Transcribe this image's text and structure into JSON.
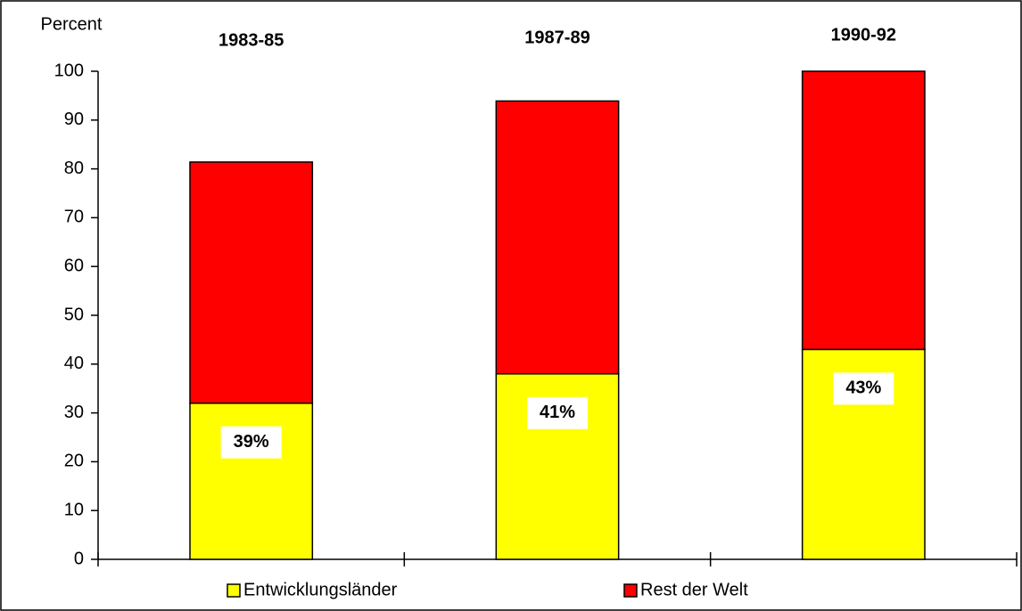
{
  "chart_data": {
    "type": "bar",
    "stacked": true,
    "y_label": "Percent",
    "categories": [
      "1983-85",
      "1987-89",
      "1990-92"
    ],
    "series": [
      {
        "name": "Entwicklungsländer",
        "color": "#ffff00",
        "values": [
          32,
          38,
          43
        ]
      },
      {
        "name": "Rest der Welt",
        "color": "#ff0000",
        "values": [
          49.4,
          55.9,
          57
        ]
      }
    ],
    "annotations": [
      "39%",
      "41%",
      "43%"
    ],
    "ylim": [
      0,
      100
    ],
    "yticks": [
      0,
      10,
      20,
      30,
      40,
      50,
      60,
      70,
      80,
      90,
      100
    ],
    "legend": "bottom"
  }
}
